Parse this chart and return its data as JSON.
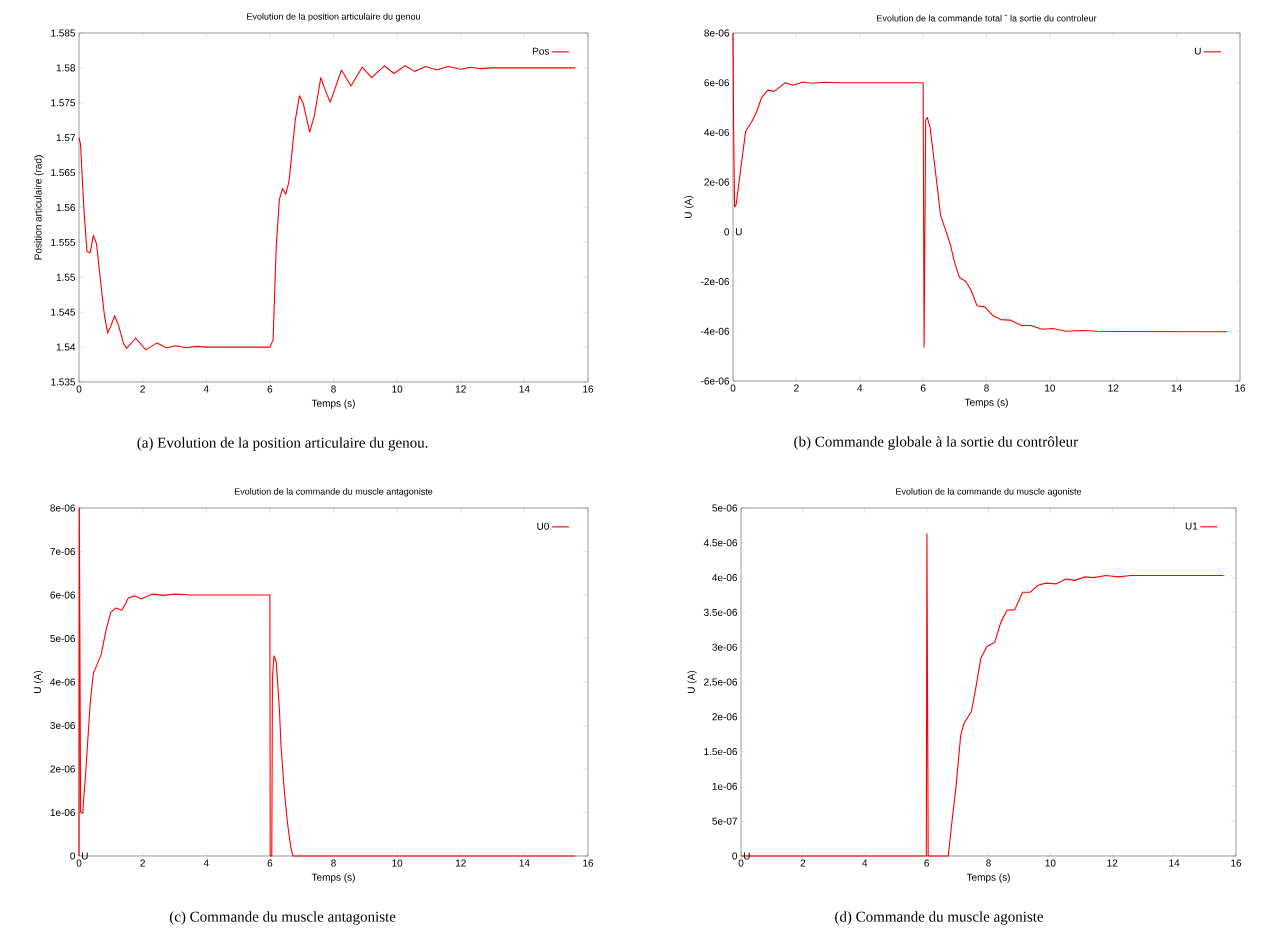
{
  "chart_data": [
    {
      "type": "line",
      "title": "Evolution de la position articulaire du genou",
      "xlabel": "Temps (s)",
      "ylabel": "Position articulaire (rad)",
      "legend": "top right",
      "x": [
        0,
        0.05,
        0.15,
        0.25,
        0.35,
        0.45,
        0.55,
        0.7,
        0.8,
        0.9,
        1.0,
        1.12,
        1.25,
        1.4,
        1.5,
        1.78,
        2.1,
        2.45,
        2.75,
        3.05,
        3.35,
        3.7,
        4,
        6.0,
        6.1,
        6.2,
        6.3,
        6.4,
        6.5,
        6.6,
        6.8,
        6.93,
        7.05,
        7.25,
        7.4,
        7.6,
        7.8,
        7.9,
        8.25,
        8.55,
        8.9,
        9.2,
        9.6,
        9.9,
        10.25,
        10.55,
        10.9,
        11.25,
        11.6,
        12.0,
        12.3,
        12.6,
        13.0,
        15.6
      ],
      "series": [
        {
          "name": "Pos",
          "color": "#ff0000",
          "values": [
            1.57,
            1.569,
            1.56,
            1.5537,
            1.5535,
            1.556,
            1.5548,
            1.5485,
            1.5445,
            1.542,
            1.543,
            1.5445,
            1.543,
            1.5405,
            1.5398,
            1.5413,
            1.5396,
            1.5406,
            1.5399,
            1.5402,
            1.5399,
            1.5401,
            1.54,
            1.54,
            1.541,
            1.5544,
            1.5612,
            1.5627,
            1.5619,
            1.5637,
            1.5726,
            1.576,
            1.5749,
            1.5708,
            1.5732,
            1.5786,
            1.5761,
            1.5751,
            1.5797,
            1.5774,
            1.5801,
            1.5786,
            1.5803,
            1.5792,
            1.5803,
            1.5795,
            1.5802,
            1.5797,
            1.5802,
            1.5798,
            1.5801,
            1.5799,
            1.58,
            1.58
          ]
        }
      ],
      "xlim": [
        0,
        16
      ],
      "ylim": [
        1.535,
        1.585
      ],
      "xticks": [
        0,
        2,
        4,
        6,
        8,
        10,
        12,
        14,
        16
      ],
      "yticks": [
        {
          "value": 1.535,
          "label": "1.535"
        },
        {
          "value": 1.54,
          "label": "1.54"
        },
        {
          "value": 1.545,
          "label": "1.545"
        },
        {
          "value": 1.55,
          "label": "1.55"
        },
        {
          "value": 1.555,
          "label": "1.555"
        },
        {
          "value": 1.56,
          "label": "1.56"
        },
        {
          "value": 1.565,
          "label": "1.565"
        },
        {
          "value": 1.57,
          "label": "1.57"
        },
        {
          "value": 1.575,
          "label": "1.575"
        },
        {
          "value": 1.58,
          "label": "1.58"
        },
        {
          "value": 1.585,
          "label": "1.585"
        }
      ],
      "annotations": [
        "(a) Evolution de la position articulaire du genou."
      ]
    },
    {
      "type": "line",
      "title": "Evolution de la commande total ˆ la sortie du controleur",
      "xlabel": "Temps (s)",
      "ylabel": "U (A)",
      "legend": "top right",
      "x": [
        0,
        0.02,
        0.05,
        0.1,
        0.25,
        0.4,
        0.6,
        0.75,
        0.9,
        1.1,
        1.3,
        1.45,
        1.65,
        1.9,
        2.2,
        2.5,
        2.9,
        3.3,
        5.98,
        6.0,
        6.03,
        6.08,
        6.13,
        6.22,
        6.4,
        6.55,
        6.7,
        6.85,
        7.0,
        7.15,
        7.35,
        7.5,
        7.7,
        7.95,
        8.2,
        8.45,
        8.75,
        9.1,
        9.4,
        9.75,
        10.1,
        10.5,
        11.0,
        11.5,
        12.0,
        15.6
      ],
      "series": [
        {
          "name": "U",
          "color": "#ff0000",
          "values": [
            8e-06,
            4e-06,
            1e-06,
            1.1e-06,
            2.6e-06,
            4.05e-06,
            4.45e-06,
            4.85e-06,
            5.4e-06,
            5.7e-06,
            5.65e-06,
            5.8e-06,
            6e-06,
            5.9e-06,
            6.03e-06,
            5.98e-06,
            6.02e-06,
            6e-06,
            6e-06,
            6e-06,
            -4.63e-06,
            4.5e-06,
            4.6e-06,
            4.2e-06,
            2.3e-06,
            6.6e-07,
            1e-07,
            -4.7e-07,
            -1.27e-06,
            -1.84e-06,
            -2e-06,
            -2.32e-06,
            -2.97e-06,
            -3.02e-06,
            -3.37e-06,
            -3.53e-06,
            -3.55e-06,
            -3.77e-06,
            -3.77e-06,
            -3.92e-06,
            -3.89e-06,
            -4e-06,
            -3.97e-06,
            -4e-06,
            -4.01e-06,
            -4.02e-06
          ]
        }
      ],
      "xlim": [
        0,
        16
      ],
      "ylim": [
        -6e-06,
        8e-06
      ],
      "xticks": [
        0,
        2,
        4,
        6,
        8,
        10,
        12,
        14,
        16
      ],
      "yticks": [
        {
          "value": -6e-06,
          "label": "-6e-06"
        },
        {
          "value": -4e-06,
          "label": "-4e-06"
        },
        {
          "value": -2e-06,
          "label": "-2e-06"
        },
        0,
        {
          "value": 2e-06,
          "label": "2e-06"
        },
        {
          "value": 4e-06,
          "label": "4e-06"
        },
        {
          "value": 6e-06,
          "label": "6e-06"
        },
        {
          "value": 8e-06,
          "label": "8e-06"
        }
      ],
      "annotations": [
        "(b) Commande globale à la sortie du contrôleur",
        "U"
      ]
    },
    {
      "type": "line",
      "title": "Evolution de la commande du muscle antagoniste",
      "xlabel": "Temps (s)",
      "ylabel": "U (A)",
      "legend": "top right",
      "x": [
        0,
        0.01,
        0.05,
        0.12,
        0.15,
        0.2,
        0.28,
        0.35,
        0.45,
        0.55,
        0.7,
        0.85,
        1.0,
        1.15,
        1.35,
        1.55,
        1.75,
        1.95,
        2.3,
        2.65,
        3.0,
        3.5,
        6.0,
        6.01,
        6.06,
        6.08,
        6.13,
        6.2,
        6.3,
        6.35,
        6.45,
        6.55,
        6.65,
        6.72,
        15.6
      ],
      "series": [
        {
          "name": "U0",
          "color": "#ff0000",
          "values": [
            0,
            8e-06,
            1.01e-06,
            9.8e-07,
            1.35e-06,
            1.8e-06,
            2.7e-06,
            3.5e-06,
            4.2e-06,
            4.37e-06,
            4.64e-06,
            5.2e-06,
            5.6e-06,
            5.7e-06,
            5.65e-06,
            5.93e-06,
            5.98e-06,
            5.91e-06,
            6.02e-06,
            5.99e-06,
            6.02e-06,
            6e-06,
            6e-06,
            0,
            0,
            4.09e-06,
            4.6e-06,
            4.46e-06,
            3.36e-06,
            2.53e-06,
            1.52e-06,
            7.8e-07,
            2.3e-07,
            0,
            0
          ]
        }
      ],
      "xlim": [
        0,
        16
      ],
      "ylim": [
        0,
        8e-06
      ],
      "xticks": [
        0,
        2,
        4,
        6,
        8,
        10,
        12,
        14,
        16
      ],
      "yticks": [
        0,
        {
          "value": 1e-06,
          "label": "1e-06"
        },
        {
          "value": 2e-06,
          "label": "2e-06"
        },
        {
          "value": 3e-06,
          "label": "3e-06"
        },
        {
          "value": 4e-06,
          "label": "4e-06"
        },
        {
          "value": 5e-06,
          "label": "5e-06"
        },
        {
          "value": 6e-06,
          "label": "6e-06"
        },
        {
          "value": 7e-06,
          "label": "7e-06"
        },
        {
          "value": 8e-06,
          "label": "8e-06"
        }
      ],
      "annotations": [
        "(c) Commande du muscle antagoniste",
        "U"
      ]
    },
    {
      "type": "line",
      "title": "Evolution de la commande du muscle agoniste",
      "xlabel": "Temps (s)",
      "ylabel": "U (A)",
      "legend": "top right",
      "x": [
        0,
        5.99,
        6.01,
        6.05,
        6.7,
        6.8,
        6.95,
        7.1,
        7.2,
        7.45,
        7.6,
        7.75,
        7.95,
        8.2,
        8.4,
        8.6,
        8.85,
        9.1,
        9.35,
        9.6,
        9.85,
        10.2,
        10.5,
        10.8,
        11.1,
        11.4,
        11.8,
        12.2,
        12.6,
        15.6
      ],
      "series": [
        {
          "name": "U1",
          "color": "#ff0000",
          "values": [
            0,
            0,
            4.63e-06,
            0,
            0,
            4.2e-07,
            1e-06,
            1.73e-06,
            1.9e-06,
            2.08e-06,
            2.44e-06,
            2.84e-06,
            3.01e-06,
            3.07e-06,
            3.36e-06,
            3.53e-06,
            3.54e-06,
            3.79e-06,
            3.79e-06,
            3.89e-06,
            3.92e-06,
            3.91e-06,
            3.98e-06,
            3.96e-06,
            4.01e-06,
            4e-06,
            4.03e-06,
            4.01e-06,
            4.03e-06,
            4.03e-06
          ]
        }
      ],
      "xlim": [
        0,
        16
      ],
      "ylim": [
        0,
        5e-06
      ],
      "xticks": [
        0,
        2,
        4,
        6,
        8,
        10,
        12,
        14,
        16
      ],
      "yticks": [
        0,
        {
          "value": 5e-07,
          "label": "5e-07"
        },
        {
          "value": 1e-06,
          "label": "1e-06"
        },
        {
          "value": 1.5e-06,
          "label": "1.5e-06"
        },
        {
          "value": 2e-06,
          "label": "2e-06"
        },
        {
          "value": 2.5e-06,
          "label": "2.5e-06"
        },
        {
          "value": 3e-06,
          "label": "3e-06"
        },
        {
          "value": 3.5e-06,
          "label": "3.5e-06"
        },
        {
          "value": 4e-06,
          "label": "4e-06"
        },
        {
          "value": 4.5e-06,
          "label": "4.5e-06"
        },
        {
          "value": 5e-06,
          "label": "5e-06"
        }
      ],
      "annotations": [
        "(d) Commande du muscle agoniste",
        "U"
      ]
    }
  ]
}
